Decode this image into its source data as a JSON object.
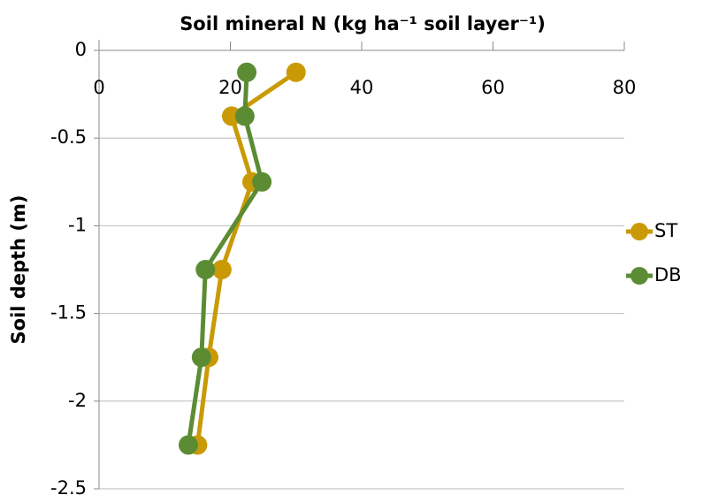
{
  "chart_data": {
    "type": "line",
    "title": "Soil mineral N (kg ha⁻¹ soil layer⁻¹)",
    "y_label": "Soil depth (m)",
    "y": [
      -0.125,
      -0.375,
      -0.75,
      -1.25,
      -1.75,
      -2.25
    ],
    "series": [
      {
        "name": "ST",
        "color": "#c99a06",
        "values": [
          30.0,
          20.2,
          23.3,
          18.7,
          16.7,
          15.0
        ]
      },
      {
        "name": "DB",
        "color": "#5b8c33",
        "values": [
          22.5,
          22.2,
          24.8,
          16.2,
          15.6,
          13.6
        ]
      }
    ],
    "xlim": [
      0,
      80
    ],
    "xticks": [
      0,
      20,
      40,
      60,
      80
    ],
    "ylim": [
      -2.5,
      0
    ],
    "yticks": [
      0,
      -0.5,
      -1,
      -1.5,
      -2,
      -2.5
    ],
    "grid": true,
    "legend": "right"
  }
}
